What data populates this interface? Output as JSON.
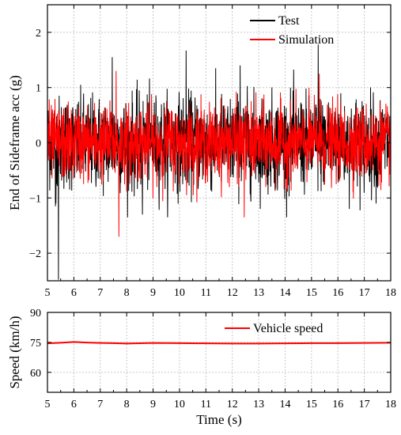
{
  "chart_data": [
    {
      "type": "line",
      "ylabel": "End of Sideframe acc (g)",
      "xlim": [
        5,
        18
      ],
      "ylim": [
        -2.5,
        2.5
      ],
      "xticks": [
        5,
        6,
        7,
        8,
        9,
        10,
        11,
        12,
        13,
        14,
        15,
        16,
        17,
        18
      ],
      "yticks": [
        -2,
        -1,
        0,
        1,
        2
      ],
      "grid": true,
      "legend_position": "top-right",
      "series": [
        {
          "name": "Test",
          "color": "#000000",
          "style": "dense noisy signal",
          "typical_range": [
            -1.0,
            1.0
          ],
          "extremes": [
            {
              "x": 5.42,
              "y": -2.48
            },
            {
              "x": 5.3,
              "y": -1.15
            },
            {
              "x": 7.45,
              "y": 1.55
            },
            {
              "x": 10.25,
              "y": 1.67
            },
            {
              "x": 15.25,
              "y": 1.78
            },
            {
              "x": 12.3,
              "y": 1.4
            },
            {
              "x": 8.6,
              "y": -1.3
            }
          ]
        },
        {
          "name": "Simulation",
          "color": "#ff0000",
          "style": "dense noisy signal",
          "typical_range": [
            -0.8,
            0.8
          ],
          "extremes": [
            {
              "x": 7.7,
              "y": -1.7
            },
            {
              "x": 12.45,
              "y": -1.35
            },
            {
              "x": 7.6,
              "y": 1.3
            },
            {
              "x": 15.3,
              "y": 1.25
            }
          ]
        }
      ]
    },
    {
      "type": "line",
      "xlabel": "Time (s)",
      "ylabel": "Speed (km/h)",
      "xlim": [
        5,
        18
      ],
      "ylim": [
        50,
        90
      ],
      "xticks": [
        5,
        6,
        7,
        8,
        9,
        10,
        11,
        12,
        13,
        14,
        15,
        16,
        17,
        18
      ],
      "yticks": [
        60,
        75,
        90
      ],
      "grid": true,
      "legend_position": "top-right",
      "series": [
        {
          "name": "Vehicle speed",
          "color": "#ff0000",
          "x": [
            5,
            5.5,
            6,
            6.5,
            7,
            7.5,
            8,
            9,
            10,
            11,
            12,
            13,
            14,
            15,
            16,
            17,
            18
          ],
          "y": [
            74.5,
            74.8,
            75.2,
            74.9,
            74.7,
            74.6,
            74.4,
            74.7,
            74.6,
            74.5,
            74.4,
            74.4,
            74.5,
            74.6,
            74.6,
            74.7,
            74.8
          ]
        }
      ]
    }
  ]
}
